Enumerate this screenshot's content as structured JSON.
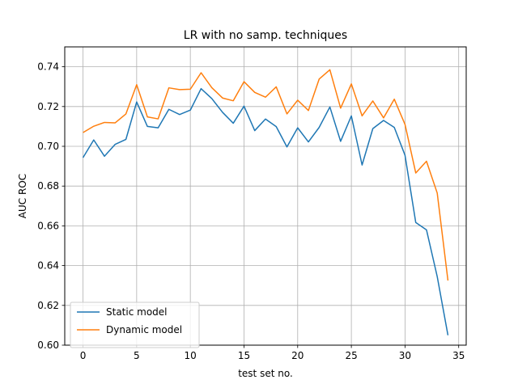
{
  "chart_data": {
    "type": "line",
    "title": "LR with no samp. techniques",
    "xlabel": "test set no.",
    "ylabel": "AUC ROC",
    "xlim": [
      -1.7,
      35.7
    ],
    "ylim": [
      0.6,
      0.75
    ],
    "xticks": [
      0,
      5,
      10,
      15,
      20,
      25,
      30,
      35
    ],
    "xtick_labels": [
      "0",
      "5",
      "10",
      "15",
      "20",
      "25",
      "30",
      "35"
    ],
    "yticks": [
      0.6,
      0.62,
      0.64,
      0.66,
      0.68,
      0.7,
      0.72,
      0.74
    ],
    "ytick_labels": [
      "0.60",
      "0.62",
      "0.64",
      "0.66",
      "0.68",
      "0.70",
      "0.72",
      "0.74"
    ],
    "grid": true,
    "legend_position": "lower-left",
    "x": [
      0,
      1,
      2,
      3,
      4,
      5,
      6,
      7,
      8,
      9,
      10,
      11,
      12,
      13,
      14,
      15,
      16,
      17,
      18,
      19,
      20,
      21,
      22,
      23,
      24,
      25,
      26,
      27,
      28,
      29,
      30,
      31,
      32,
      33,
      34
    ],
    "series": [
      {
        "name": "Static model",
        "color": "#1f77b4",
        "values": [
          0.6943,
          0.7032,
          0.695,
          0.701,
          0.7035,
          0.7223,
          0.71,
          0.7093,
          0.7186,
          0.716,
          0.7182,
          0.729,
          0.724,
          0.7171,
          0.7116,
          0.7202,
          0.7079,
          0.7137,
          0.7099,
          0.6997,
          0.7093,
          0.7022,
          0.7095,
          0.7198,
          0.7025,
          0.7153,
          0.6906,
          0.7089,
          0.713,
          0.7095,
          0.6955,
          0.6617,
          0.658,
          0.6345,
          0.605
        ]
      },
      {
        "name": "Dynamic model",
        "color": "#ff7f0e",
        "values": [
          0.7069,
          0.7101,
          0.712,
          0.7118,
          0.7163,
          0.731,
          0.7148,
          0.7138,
          0.7294,
          0.7285,
          0.7287,
          0.737,
          0.7295,
          0.7243,
          0.7229,
          0.7325,
          0.7271,
          0.7247,
          0.7299,
          0.7163,
          0.7232,
          0.718,
          0.7338,
          0.7385,
          0.7192,
          0.7314,
          0.7153,
          0.7228,
          0.7143,
          0.7237,
          0.711,
          0.6866,
          0.6925,
          0.6765,
          0.6325
        ]
      }
    ]
  }
}
